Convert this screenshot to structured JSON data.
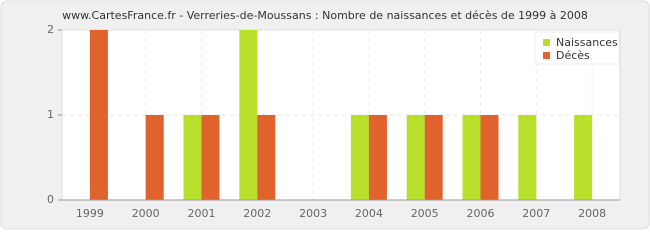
{
  "chart_data": {
    "type": "bar",
    "title": "www.CartesFrance.fr - Verreries-de-Moussans : Nombre de naissances et décès de 1999 à 2008",
    "categories": [
      "1999",
      "2000",
      "2001",
      "2002",
      "2003",
      "2004",
      "2005",
      "2006",
      "2007",
      "2008"
    ],
    "series": [
      {
        "name": "Naissances",
        "color": "#b8e02a",
        "values": [
          0,
          0,
          1,
          2,
          0,
          1,
          1,
          1,
          1,
          1
        ]
      },
      {
        "name": "Décès",
        "color": "#e0622c",
        "values": [
          2,
          1,
          1,
          1,
          0,
          1,
          1,
          1,
          0,
          0
        ]
      }
    ],
    "ylim": [
      0,
      2
    ],
    "yticks": [
      0,
      1,
      2
    ],
    "grid": true,
    "legend": "top-right"
  }
}
